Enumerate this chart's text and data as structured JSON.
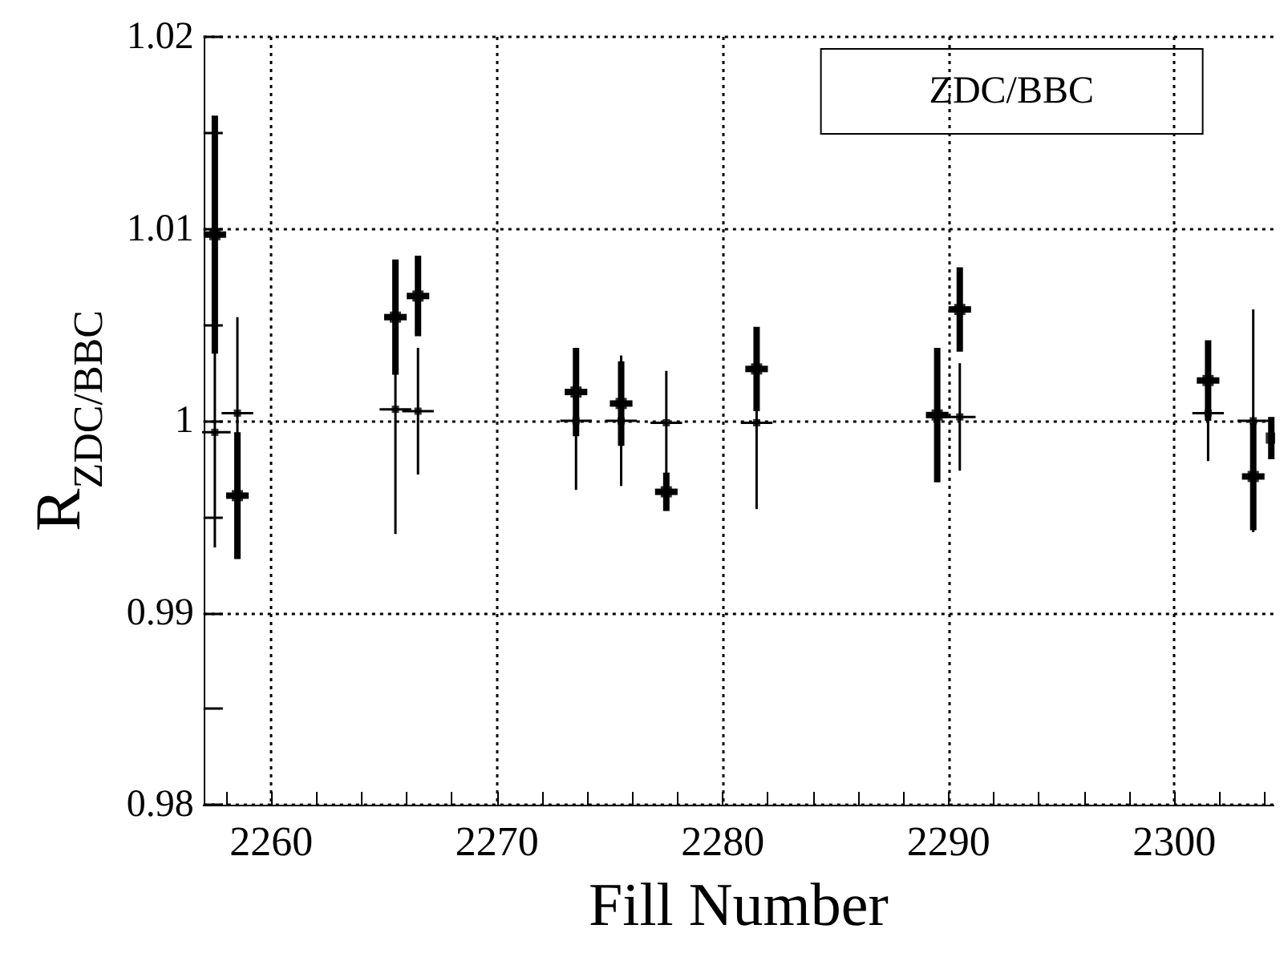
{
  "chart_data": {
    "type": "scatter",
    "title": "ZDC/BBC",
    "xlabel": "Fill Number",
    "ylabel": "R$_{ZDC/BBC}$",
    "xlim": [
      2257,
      2304.4
    ],
    "xticks": [
      {
        "value": 2258,
        "label": null
      },
      2260,
      {
        "value": 2262,
        "label": null
      },
      {
        "value": 2264,
        "label": null
      },
      {
        "value": 2266,
        "label": null
      },
      {
        "value": 2268,
        "label": null
      },
      2270,
      {
        "value": 2272,
        "label": null
      },
      {
        "value": 2274,
        "label": null
      },
      {
        "value": 2276,
        "label": null
      },
      {
        "value": 2278,
        "label": null
      },
      2280,
      {
        "value": 2282,
        "label": null
      },
      {
        "value": 2284,
        "label": null
      },
      {
        "value": 2286,
        "label": null
      },
      {
        "value": 2288,
        "label": null
      },
      2290,
      {
        "value": 2292,
        "label": null
      },
      {
        "value": 2294,
        "label": null
      },
      {
        "value": 2296,
        "label": null
      },
      {
        "value": 2298,
        "label": null
      },
      2300,
      {
        "value": 2302,
        "label": null
      },
      {
        "value": 2304,
        "label": null
      }
    ],
    "ylim": [
      0.98,
      1.02
    ],
    "yticks": [
      0.98,
      {
        "value": 0.985,
        "label": null
      },
      0.99,
      {
        "value": 0.995,
        "label": null
      },
      1,
      {
        "value": 1.005,
        "label": null
      },
      1.01,
      {
        "value": 1.015,
        "label": null
      },
      1.02
    ],
    "grid": true,
    "marker": "square",
    "series": [
      {
        "color": "#000000",
        "x": [
          2257.5,
          2258.5,
          2265.5,
          2266.5,
          2273.5,
          2275.5,
          2277.5,
          2281.5,
          2289.5,
          2290.5,
          2301.5,
          2303.5,
          2304.3
        ],
        "values": [
          1.0097,
          0.9961,
          1.0054,
          1.0065,
          1.0015,
          1.0009,
          0.9963,
          1.0027,
          1.0003,
          1.0058,
          1.0021,
          0.9971,
          0.9991
        ],
        "errors": [
          0.0062,
          0.0033,
          0.003,
          0.0021,
          0.0023,
          0.0022,
          0.001,
          0.0022,
          0.0035,
          0.0022,
          0.0021,
          0.0028,
          0.0011
        ],
        "xerrors": [
          0.5,
          0.5,
          0.5,
          0.5,
          0.5,
          0.5,
          0.5,
          0.5,
          0.5,
          0.5,
          0.5,
          0.5,
          0.1
        ]
      },
      {
        "color": "#000000",
        "x": [
          2257.5,
          2258.5,
          2265.5,
          2266.5,
          2273.5,
          2275.5,
          2277.5,
          2281.5,
          2289.5,
          2290.5,
          2301.5,
          2303.5
        ],
        "values": [
          0.9994,
          1.0004,
          1.0006,
          1.0005,
          1,
          1,
          0.9999,
          0.9999,
          null,
          1.0002,
          1.0004,
          1
        ],
        "errors": [
          0.006,
          0.005,
          0.0065,
          0.0033,
          0.0036,
          0.0034,
          0.0027,
          0.0045,
          null,
          0.0028,
          0.0025,
          0.0058
        ],
        "xerrors": [
          0.7,
          0.7,
          0.7,
          0.7,
          0.7,
          0.7,
          0.7,
          0.7,
          null,
          0.7,
          0.7,
          0.7
        ]
      }
    ]
  }
}
